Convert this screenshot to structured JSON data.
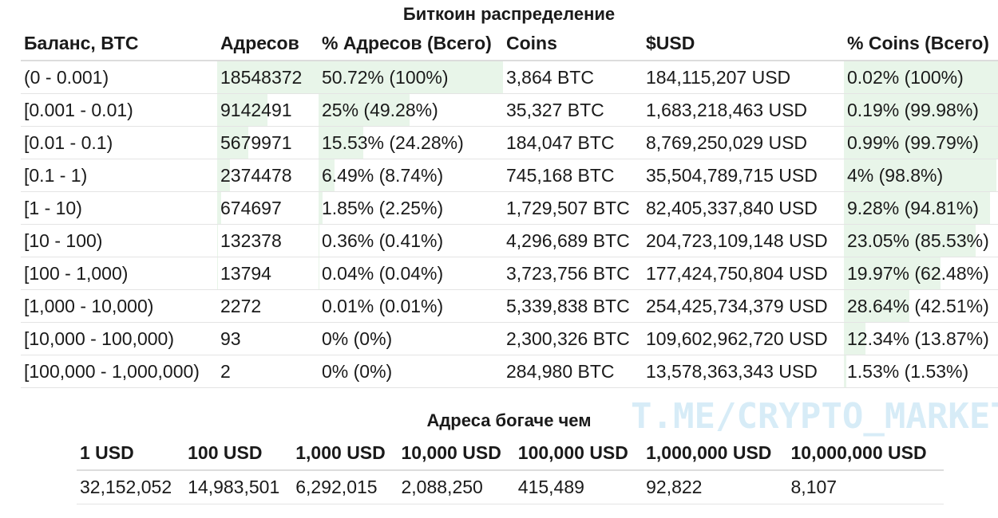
{
  "distribution": {
    "title": "Биткоин распределение",
    "columns": [
      "Баланс, BTC",
      "Адресов",
      "% Адресов (Всего)",
      "Coins",
      "$USD",
      "% Coins (Всего)"
    ],
    "rows": [
      {
        "balance": "(0 - 0.001)",
        "addresses": "18548372",
        "addr_pct": "50.72% (100%)",
        "coins": "3,864 BTC",
        "usd": "184,115,207 USD",
        "coins_pct": "0.02% (100%)",
        "addr_share": 100,
        "addr_total_share": 100,
        "coins_total_share": 100
      },
      {
        "balance": "[0.001 - 0.01)",
        "addresses": "9142491",
        "addr_pct": "25% (49.28%)",
        "coins": "35,327 BTC",
        "usd": "1,683,218,463 USD",
        "coins_pct": "0.19% (99.98%)",
        "addr_share": 49.3,
        "addr_total_share": 49.28,
        "coins_total_share": 99.98
      },
      {
        "balance": "[0.01 - 0.1)",
        "addresses": "5679971",
        "addr_pct": "15.53% (24.28%)",
        "coins": "184,047 BTC",
        "usd": "8,769,250,029 USD",
        "coins_pct": "0.99% (99.79%)",
        "addr_share": 30.6,
        "addr_total_share": 24.28,
        "coins_total_share": 99.79
      },
      {
        "balance": "[0.1 - 1)",
        "addresses": "2374478",
        "addr_pct": "6.49% (8.74%)",
        "coins": "745,168 BTC",
        "usd": "35,504,789,715 USD",
        "coins_pct": "4% (98.8%)",
        "addr_share": 12.8,
        "addr_total_share": 8.74,
        "coins_total_share": 98.8
      },
      {
        "balance": "[1 - 10)",
        "addresses": "674697",
        "addr_pct": "1.85% (2.25%)",
        "coins": "1,729,507 BTC",
        "usd": "82,405,337,840 USD",
        "coins_pct": "9.28% (94.81%)",
        "addr_share": 3.6,
        "addr_total_share": 2.25,
        "coins_total_share": 94.81
      },
      {
        "balance": "[10 - 100)",
        "addresses": "132378",
        "addr_pct": "0.36% (0.41%)",
        "coins": "4,296,689 BTC",
        "usd": "204,723,109,148 USD",
        "coins_pct": "23.05% (85.53%)",
        "addr_share": 0.7,
        "addr_total_share": 0.41,
        "coins_total_share": 85.53
      },
      {
        "balance": "[100 - 1,000)",
        "addresses": "13794",
        "addr_pct": "0.04% (0.04%)",
        "coins": "3,723,756 BTC",
        "usd": "177,424,750,804 USD",
        "coins_pct": "19.97% (62.48%)",
        "addr_share": 0.07,
        "addr_total_share": 0.04,
        "coins_total_share": 62.48
      },
      {
        "balance": "[1,000 - 10,000)",
        "addresses": "2272",
        "addr_pct": "0.01% (0.01%)",
        "coins": "5,339,838 BTC",
        "usd": "254,425,734,379 USD",
        "coins_pct": "28.64% (42.51%)",
        "addr_share": 0.01,
        "addr_total_share": 0.01,
        "coins_total_share": 42.51
      },
      {
        "balance": "[10,000 - 100,000)",
        "addresses": "93",
        "addr_pct": "0% (0%)",
        "coins": "2,300,326 BTC",
        "usd": "109,602,962,720 USD",
        "coins_pct": "12.34% (13.87%)",
        "addr_share": 0,
        "addr_total_share": 0,
        "coins_total_share": 13.87
      },
      {
        "balance": "[100,000 - 1,000,000)",
        "addresses": "2",
        "addr_pct": "0% (0%)",
        "coins": "284,980 BTC",
        "usd": "13,578,363,343 USD",
        "coins_pct": "1.53% (1.53%)",
        "addr_share": 0,
        "addr_total_share": 0,
        "coins_total_share": 1.53
      }
    ]
  },
  "richer": {
    "title": "Адреса богаче чем",
    "columns": [
      "1 USD",
      "100 USD",
      "1,000 USD",
      "10,000 USD",
      "100,000 USD",
      "1,000,000 USD",
      "10,000,000 USD"
    ],
    "values": [
      "32,152,052",
      "14,983,501",
      "6,292,015",
      "2,088,250",
      "415,489",
      "92,822",
      "8,107"
    ]
  },
  "watermark": "T.ME/CRYPTO_MARKET",
  "colors": {
    "bar_fill": "#e8f5e9",
    "watermark": "#d7ecf7"
  }
}
